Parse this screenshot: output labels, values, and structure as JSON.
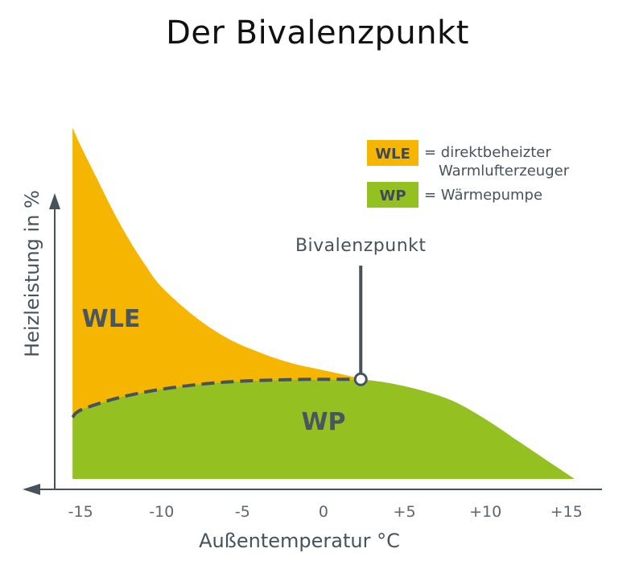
{
  "colors": {
    "wle": "#f6b500",
    "wp": "#95c022",
    "axis": "#46535d",
    "text": "#46535d"
  },
  "chart_data": {
    "type": "area",
    "title": "Der Bivalenzpunkt",
    "xlabel": "Außentemperatur °C",
    "ylabel": "Heizleistung in %",
    "x_ticks": [
      "-15",
      "-10",
      "-5",
      "0",
      "+5",
      "+10",
      "+15"
    ],
    "xlim": [
      -16.5,
      17
    ],
    "ylim": [
      0,
      100
    ],
    "grid": false,
    "legend": {
      "placement": "top-right",
      "entries": [
        {
          "key": "WLE",
          "lines": [
            "= direktbeheizter",
            "Warmlufterzeuger"
          ],
          "color": "#f6b500"
        },
        {
          "key": "WP",
          "lines": [
            "= Wärmepumpe"
          ],
          "color": "#95c022"
        }
      ]
    },
    "series": [
      {
        "name": "WLE",
        "x": [
          -15.5,
          -15,
          -14,
          -13,
          -12,
          -11,
          -10,
          -8,
          -6,
          -4,
          -2,
          0,
          2,
          2.3
        ],
        "values": [
          97,
          92,
          83,
          74,
          66,
          59,
          53,
          45,
          39,
          35,
          32,
          30,
          28,
          27.5
        ]
      },
      {
        "name": "WP",
        "x": [
          -15.5,
          -15,
          -13,
          -11,
          -9,
          -7,
          -5,
          -3,
          -1,
          0,
          1,
          2,
          2.3,
          4,
          6,
          8,
          10,
          12,
          14,
          15.5
        ],
        "values": [
          17,
          19,
          22,
          24,
          25.4,
          26.4,
          27,
          27.3,
          27.5,
          27.5,
          27.5,
          27.5,
          27.5,
          26.5,
          24.5,
          21.5,
          16.5,
          10.5,
          4.5,
          0
        ]
      }
    ],
    "area_labels": {
      "wle": "WLE",
      "wp": "WP"
    },
    "annotations": [
      {
        "text": "Bivalenzpunkt",
        "x": 2.3,
        "y": 27.5
      }
    ]
  }
}
